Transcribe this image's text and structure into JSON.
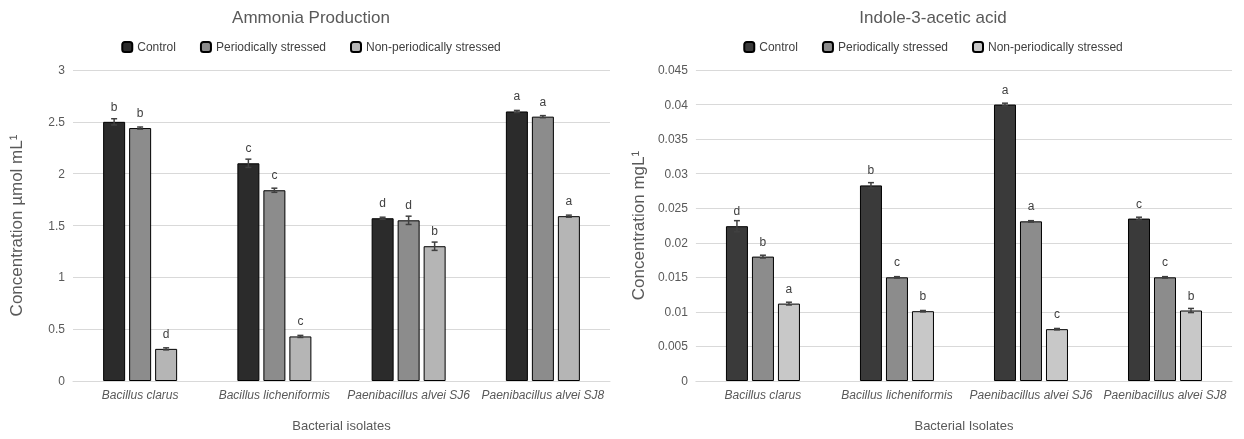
{
  "chart_data": [
    {
      "type": "bar",
      "title": "Ammonia Production",
      "xlabel": "Bacterial isolates",
      "ylabel": "Concentration µmol mL¹",
      "categories": [
        "Bacillus clarus",
        "Bacillus licheniformis",
        "Paenibacillus alvei SJ6",
        "Paenibacillus alvei SJ8"
      ],
      "series": [
        {
          "name": "Control",
          "color": "#2b2b2b",
          "values": [
            2.5,
            2.1,
            1.57,
            2.6
          ],
          "errors": [
            0.03,
            0.04,
            0.01,
            0.01
          ],
          "value_labels": [
            "b",
            "c",
            "d",
            "a"
          ]
        },
        {
          "name": "Periodically stressed",
          "color": "#8c8c8c",
          "values": [
            2.44,
            1.84,
            1.55,
            2.55
          ],
          "errors": [
            0.01,
            0.02,
            0.04,
            0.01
          ],
          "value_labels": [
            "b",
            "c",
            "d",
            "a"
          ]
        },
        {
          "name": "Non-periodically stressed",
          "color": "#b5b5b5",
          "values": [
            0.31,
            0.43,
            1.3,
            1.59
          ],
          "errors": [
            0.01,
            0.01,
            0.04,
            0.01
          ],
          "value_labels": [
            "d",
            "c",
            "b",
            "a"
          ]
        }
      ],
      "ylim": [
        0,
        3
      ],
      "yticks": [
        0,
        0.5,
        1,
        1.5,
        2,
        2.5,
        3
      ],
      "grid": "y",
      "legend": "top"
    },
    {
      "type": "bar",
      "title": "Indole-3-acetic acid",
      "xlabel": "Bacterial Isolates",
      "ylabel": "Concentration mgL¹",
      "categories": [
        "Bacillus clarus",
        "Bacillus licheniformis",
        "Paenibacillus alvei SJ6",
        "Paenibacillus alvei SJ8"
      ],
      "series": [
        {
          "name": "Control",
          "color": "#3a3a3a",
          "values": [
            0.0224,
            0.0283,
            0.04,
            0.0235
          ],
          "errors": [
            0.0008,
            0.0004,
            0.0002,
            0.0002
          ],
          "value_labels": [
            "d",
            "b",
            "a",
            "c"
          ]
        },
        {
          "name": "Periodically stressed",
          "color": "#8c8c8c",
          "values": [
            0.018,
            0.015,
            0.0231,
            0.015
          ],
          "errors": [
            0.0002,
            0.0001,
            0.0001,
            0.0001
          ],
          "value_labels": [
            "b",
            "c",
            "a",
            "c"
          ]
        },
        {
          "name": "Non-periodically stressed",
          "color": "#c8c8c8",
          "values": [
            0.0112,
            0.0101,
            0.0075,
            0.0102
          ],
          "errors": [
            0.0002,
            0.0001,
            0.0001,
            0.0003
          ],
          "value_labels": [
            "a",
            "b",
            "c",
            "b"
          ]
        }
      ],
      "ylim": [
        0,
        0.045
      ],
      "yticks": [
        0,
        0.005,
        0.01,
        0.015,
        0.02,
        0.025,
        0.03,
        0.035,
        0.04,
        0.045
      ],
      "grid": "y",
      "legend": "top"
    }
  ]
}
